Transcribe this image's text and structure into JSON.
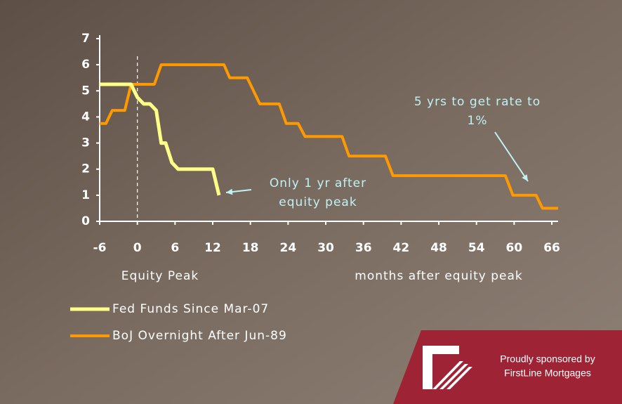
{
  "chart_data": {
    "type": "line",
    "series": [
      {
        "name": "Fed Funds Since Mar-07",
        "color": "#ffff88",
        "x": [
          -6,
          -1,
          0,
          1,
          2,
          3,
          3.8,
          4.5,
          5.5,
          6.5,
          12,
          13
        ],
        "values": [
          5.25,
          5.25,
          4.75,
          4.5,
          4.5,
          4.25,
          3.0,
          3.0,
          2.25,
          2.0,
          2.0,
          1.0
        ]
      },
      {
        "name": "BoJ Overnight After Jun-89",
        "color": "#ff9900",
        "x": [
          -6,
          -5,
          -4,
          -2,
          -1,
          2.7,
          3.8,
          13.8,
          14.7,
          17.5,
          19.5,
          22.6,
          23.7,
          25.6,
          26.7,
          32.6,
          33.7,
          39.5,
          40.7,
          58.6,
          59.8,
          63.5,
          64.5,
          67
        ],
        "values": [
          3.75,
          3.75,
          4.25,
          4.25,
          5.25,
          5.25,
          6.0,
          6.0,
          5.5,
          5.5,
          4.5,
          4.5,
          3.75,
          3.75,
          3.25,
          3.25,
          2.5,
          2.5,
          1.75,
          1.75,
          1.0,
          1.0,
          0.5,
          0.5
        ]
      }
    ],
    "xlim": [
      -6,
      67
    ],
    "xticks": [
      -6,
      0,
      6,
      12,
      18,
      24,
      30,
      36,
      42,
      48,
      54,
      60,
      66
    ],
    "ylim": [
      0,
      7
    ],
    "yticks": [
      0,
      1,
      2,
      3,
      4,
      5,
      6,
      7
    ],
    "x_label_left": "Equity Peak",
    "x_label": "months after equity peak",
    "annotations": [
      {
        "lines": [
          "Only 1 yr after",
          "equity peak"
        ]
      },
      {
        "lines": [
          "5 yrs to get rate to",
          "1%"
        ]
      }
    ],
    "sponsor": {
      "line1": "Proudly sponsored by",
      "line2": "FirstLine Mortgages"
    }
  }
}
